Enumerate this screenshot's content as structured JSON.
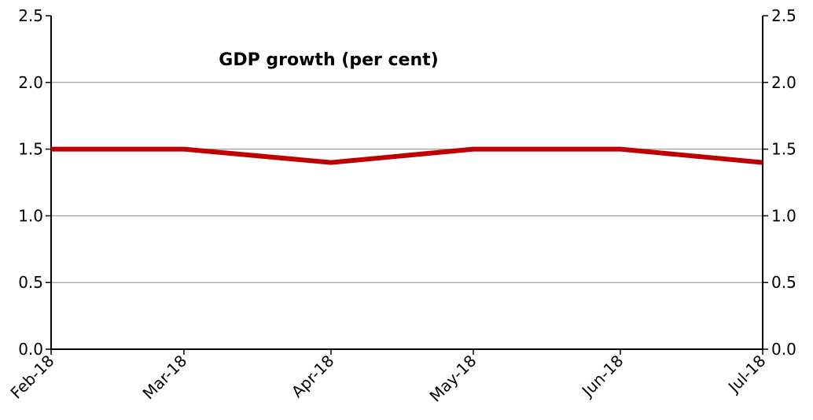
{
  "chart_data": {
    "type": "line",
    "title": "GDP growth (per cent)",
    "xlabel": "",
    "ylabel": "",
    "categories": [
      "Feb-18",
      "Mar-18",
      "Apr-18",
      "May-18",
      "Jun-18",
      "Jul-18"
    ],
    "x_dates": [
      "2018-02-01",
      "2018-03-01",
      "2018-04-01",
      "2018-05-01",
      "2018-06-01",
      "2018-07-01"
    ],
    "series": [
      {
        "values": [
          1.5,
          1.5,
          1.4,
          1.5,
          1.5,
          1.4
        ],
        "color": "#c00000"
      }
    ],
    "ylim": [
      0,
      2.5
    ],
    "y_ticks": [
      "0.0",
      "0.5",
      "1.0",
      "1.5",
      "2.0",
      "2.5"
    ],
    "y_tick_values": [
      0,
      0.5,
      1.0,
      1.5,
      2.0,
      2.5
    ],
    "secondary_y_axis": true,
    "grid": "horizontal",
    "legend": "none"
  }
}
